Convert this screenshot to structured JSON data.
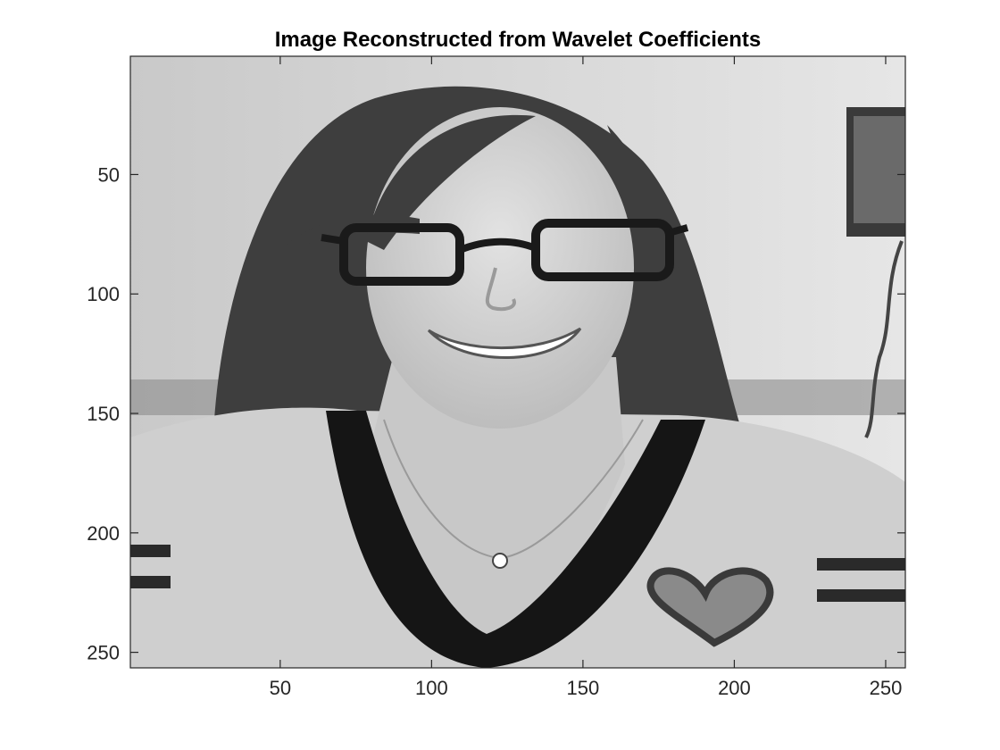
{
  "chart_data": {
    "type": "heatmap",
    "title": "Image Reconstructed from Wavelet Coefficients",
    "subject": "grayscale photograph of a smiling woman with long dark hair, glasses, and a light shirt with a heart",
    "colormap": "gray",
    "xlim": [
      0.5,
      256.5
    ],
    "ylim": [
      0.5,
      256.5
    ],
    "y_reversed": true,
    "x_ticks": [
      50,
      100,
      150,
      200,
      250
    ],
    "y_ticks": [
      50,
      100,
      150,
      200,
      250
    ],
    "x_tick_labels": [
      "50",
      "100",
      "150",
      "200",
      "250"
    ],
    "y_tick_labels": [
      "50",
      "100",
      "150",
      "200",
      "250"
    ],
    "grid": false
  },
  "colors": {
    "axis": "#262626",
    "title": "#000000",
    "background": "#ffffff"
  }
}
